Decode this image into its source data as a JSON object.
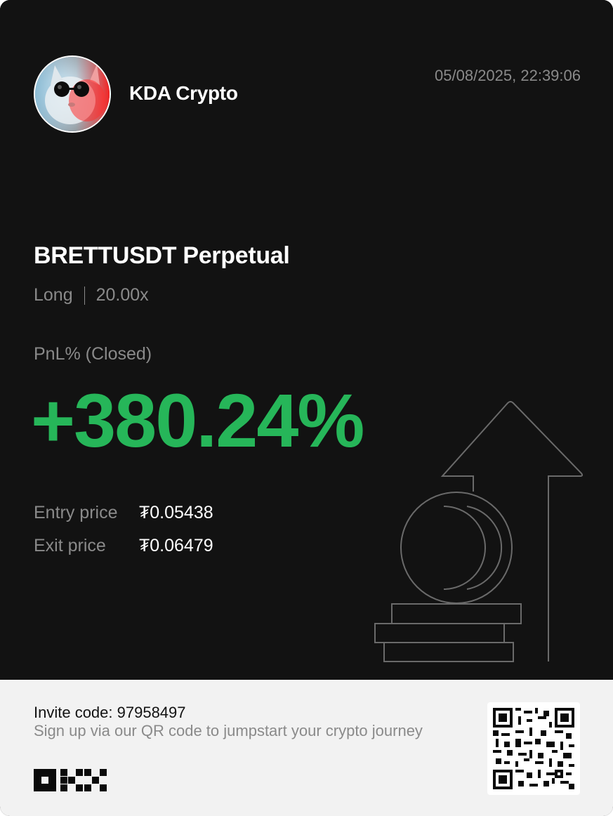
{
  "header": {
    "username": "KDA Crypto",
    "timestamp": "05/08/2025, 22:39:06",
    "avatar_icon": "cat-with-sunglasses-avatar"
  },
  "position": {
    "pair": "BRETTUSDT Perpetual",
    "side": "Long",
    "leverage": "20.00x",
    "pnl_label": "PnL% (Closed)",
    "pnl_value": "+380.24%",
    "pnl_color": "#26b659",
    "entry_label": "Entry price",
    "entry_value": "₮0.05438",
    "exit_label": "Exit price",
    "exit_value": "₮0.06479"
  },
  "footer": {
    "invite": "Invite code: 97958497",
    "tagline": "Sign up via our QR code to jumpstart your crypto journey",
    "logo_icon": "okx-logo",
    "qr_icon": "qr-code"
  },
  "colors": {
    "background": "#121212",
    "footer_bg": "#f2f2f2",
    "muted_text": "#8a8a8a"
  }
}
